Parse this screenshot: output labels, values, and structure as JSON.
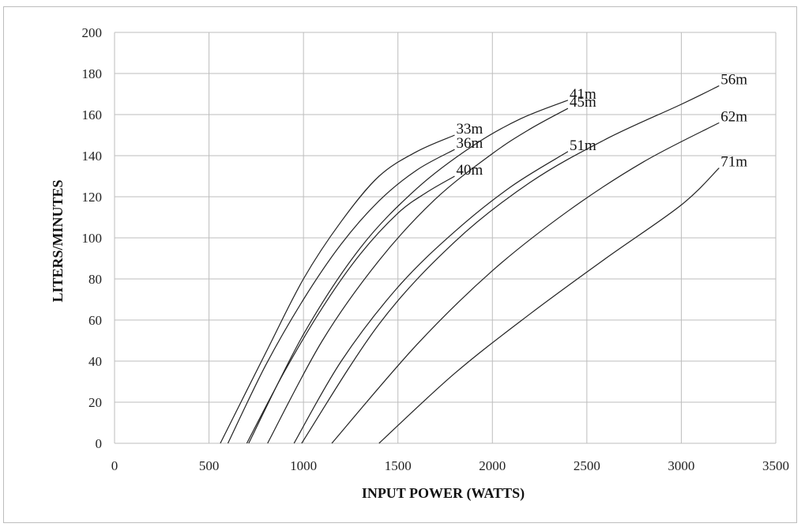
{
  "chart_data": {
    "type": "line",
    "title": "",
    "xlabel": "INPUT POWER (WATTS)",
    "ylabel": "LITERS/MINUTES",
    "xlim": [
      0,
      3500
    ],
    "ylim": [
      0,
      200
    ],
    "x_ticks": [
      0,
      500,
      1000,
      1500,
      2000,
      2500,
      3000,
      3500
    ],
    "y_ticks": [
      0,
      20,
      40,
      60,
      80,
      100,
      120,
      140,
      160,
      180,
      200
    ],
    "grid": true,
    "legend": "none",
    "series": [
      {
        "name": "33m",
        "x": [
          560,
          800,
          1000,
          1200,
          1400,
          1600,
          1800
        ],
        "y": [
          0,
          44,
          80,
          108,
          130,
          142,
          150
        ]
      },
      {
        "name": "36m",
        "x": [
          600,
          800,
          1000,
          1200,
          1400,
          1600,
          1800
        ],
        "y": [
          0,
          38,
          70,
          97,
          118,
          133,
          143
        ]
      },
      {
        "name": "40m",
        "x": [
          700,
          900,
          1100,
          1300,
          1500,
          1650,
          1800
        ],
        "y": [
          0,
          35,
          66,
          92,
          112,
          122,
          130
        ]
      },
      {
        "name": "41m",
        "x": [
          710,
          1000,
          1300,
          1600,
          1900,
          2150,
          2400
        ],
        "y": [
          0,
          53,
          95,
          124,
          145,
          158,
          167
        ]
      },
      {
        "name": "45m",
        "x": [
          810,
          1100,
          1400,
          1700,
          2000,
          2200,
          2400
        ],
        "y": [
          0,
          50,
          89,
          119,
          141,
          153,
          163
        ]
      },
      {
        "name": "51m",
        "x": [
          950,
          1200,
          1500,
          1800,
          2100,
          2400
        ],
        "y": [
          0,
          40,
          76,
          103,
          125,
          142
        ]
      },
      {
        "name": "56m",
        "x": [
          990,
          1400,
          1800,
          2200,
          2600,
          3000,
          3200
        ],
        "y": [
          0,
          58,
          98,
          127,
          148,
          165,
          174
        ]
      },
      {
        "name": "62m",
        "x": [
          1150,
          1600,
          2000,
          2400,
          2800,
          3200
        ],
        "y": [
          0,
          48,
          84,
          113,
          137,
          156
        ]
      },
      {
        "name": "71m",
        "x": [
          1400,
          1800,
          2200,
          2600,
          3000,
          3200
        ],
        "y": [
          0,
          34,
          63,
          90,
          116,
          134
        ]
      }
    ]
  }
}
